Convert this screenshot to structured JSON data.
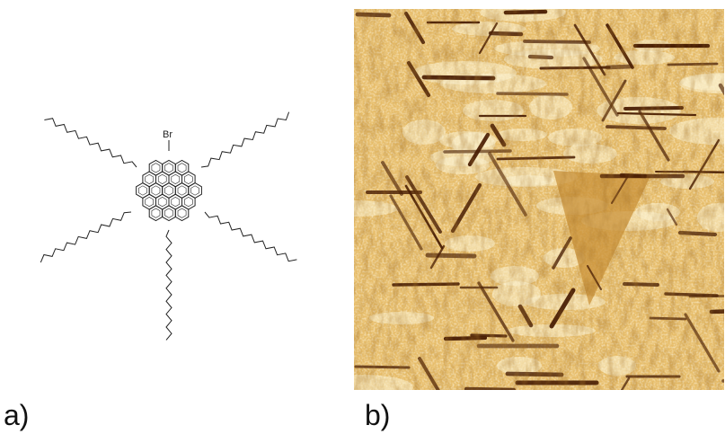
{
  "figure": {
    "panel_a": {
      "label": "a)",
      "substituent_label": "Br",
      "structure_icon": "molecule-structure-icon"
    },
    "panel_b": {
      "label": "b)",
      "image_icon": "stm-micrograph-icon",
      "colors": {
        "light": "#fbf2d2",
        "mid": "#d7a24c",
        "dark": "#4a1f05"
      }
    }
  }
}
